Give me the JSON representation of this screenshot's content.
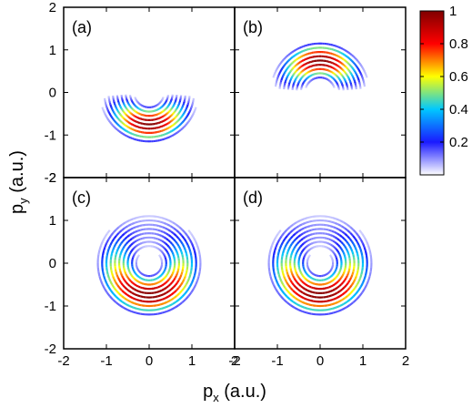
{
  "chart_data": {
    "type": "heatmap",
    "title": "",
    "xlabel": "p",
    "xlabel_sub": "x",
    "xlabel_unit": " (a.u.)",
    "ylabel": "p",
    "ylabel_sub": "y",
    "ylabel_unit": " (a.u.)",
    "xlim": [
      -2,
      2
    ],
    "ylim": [
      -2,
      2
    ],
    "tick_labels": [
      "-2",
      "-1",
      "0",
      "1",
      "2"
    ],
    "grid": false,
    "colorbar": {
      "range": [
        0,
        1
      ],
      "tick_values": [
        0.2,
        0.4,
        0.6,
        0.8,
        1
      ],
      "tick_labels": [
        "0.2",
        "0.4",
        "0.6",
        "0.8",
        "1"
      ],
      "colors": [
        "#ffffff",
        "#1a1aff",
        "#00c8ff",
        "#ffff00",
        "#ff0000",
        "#800000"
      ]
    },
    "panels": [
      {
        "label": "(a)",
        "center": [
          0,
          0
        ],
        "radii": [
          0.35,
          0.45,
          0.55,
          0.65,
          0.75,
          0.85,
          0.95,
          1.05,
          1.15
        ],
        "angle_range_deg": [
          180,
          360
        ],
        "peak_angle_deg": 270,
        "peak_intensity": 1.0
      },
      {
        "label": "(b)",
        "center": [
          0,
          0
        ],
        "radii": [
          0.35,
          0.45,
          0.55,
          0.65,
          0.75,
          0.85,
          0.95,
          1.05,
          1.15
        ],
        "angle_range_deg": [
          0,
          180
        ],
        "peak_angle_deg": 90,
        "peak_intensity": 1.0
      },
      {
        "label": "(c)",
        "center": [
          0,
          0
        ],
        "radii": [
          0.3,
          0.4,
          0.5,
          0.6,
          0.7,
          0.8,
          0.9,
          1.0,
          1.1,
          1.2
        ],
        "angle_range_deg": [
          0,
          360
        ],
        "peak_angle_deg": 270,
        "peak_intensity": 1.0
      },
      {
        "label": "(d)",
        "center": [
          0,
          0
        ],
        "radii": [
          0.3,
          0.4,
          0.5,
          0.6,
          0.7,
          0.8,
          0.9,
          1.0,
          1.1,
          1.2
        ],
        "angle_range_deg": [
          0,
          360
        ],
        "peak_angle_deg": 270,
        "peak_intensity": 1.0
      }
    ]
  }
}
